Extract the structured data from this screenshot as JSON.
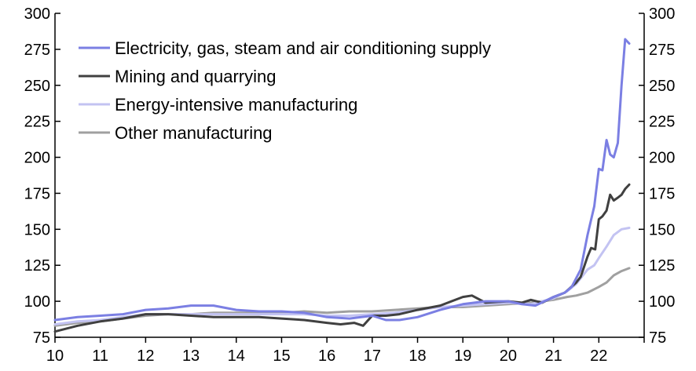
{
  "chart_data": {
    "type": "line",
    "title": "",
    "xlabel": "",
    "ylabel": "",
    "xlim": [
      2010,
      2023
    ],
    "ylim": [
      75,
      300
    ],
    "y_ticks": [
      75,
      100,
      125,
      150,
      175,
      200,
      225,
      250,
      275,
      300
    ],
    "y_tick_labels": [
      "75",
      "100",
      "125",
      "150",
      "175",
      "200",
      "225",
      "250",
      "275",
      "300"
    ],
    "x_ticks": [
      2010,
      2011,
      2012,
      2013,
      2014,
      2015,
      2016,
      2017,
      2018,
      2019,
      2020,
      2021,
      2022
    ],
    "x_tick_labels": [
      "10",
      "11",
      "12",
      "13",
      "14",
      "15",
      "16",
      "17",
      "18",
      "19",
      "20",
      "21",
      "22"
    ],
    "grid": false,
    "legend_position": "top-left",
    "series": [
      {
        "name": "Electricity, gas, steam and air conditioning supply",
        "color": "#7b7fe3",
        "x": [
          2010.0,
          2010.5,
          2011.0,
          2011.5,
          2012.0,
          2012.5,
          2013.0,
          2013.5,
          2014.0,
          2014.5,
          2015.0,
          2015.5,
          2016.0,
          2016.5,
          2017.0,
          2017.3,
          2017.6,
          2018.0,
          2018.5,
          2019.0,
          2019.5,
          2020.0,
          2020.3,
          2020.6,
          2021.0,
          2021.25,
          2021.4,
          2021.5,
          2021.6,
          2021.75,
          2021.9,
          2022.0,
          2022.08,
          2022.17,
          2022.25,
          2022.33,
          2022.42,
          2022.5,
          2022.58,
          2022.67
        ],
        "values": [
          87,
          89,
          90,
          91,
          94,
          95,
          97,
          97,
          94,
          93,
          93,
          92,
          89,
          88,
          90,
          87,
          87,
          89,
          94,
          98,
          100,
          100,
          98,
          97,
          103,
          106,
          110,
          116,
          122,
          146,
          166,
          192,
          191,
          212,
          202,
          200,
          210,
          250,
          282,
          279
        ]
      },
      {
        "name": "Mining and quarrying",
        "color": "#404040",
        "x": [
          2010.0,
          2010.5,
          2011.0,
          2011.5,
          2012.0,
          2012.5,
          2013.0,
          2013.5,
          2014.0,
          2014.5,
          2015.0,
          2015.5,
          2016.0,
          2016.3,
          2016.6,
          2016.8,
          2017.0,
          2017.3,
          2017.6,
          2018.0,
          2018.5,
          2019.0,
          2019.2,
          2019.5,
          2020.0,
          2020.3,
          2020.5,
          2020.75,
          2021.0,
          2021.25,
          2021.5,
          2021.6,
          2021.75,
          2021.83,
          2021.92,
          2022.0,
          2022.08,
          2022.17,
          2022.25,
          2022.33,
          2022.42,
          2022.5,
          2022.58,
          2022.67
        ],
        "values": [
          79,
          83,
          86,
          88,
          91,
          91,
          90,
          89,
          89,
          89,
          88,
          87,
          85,
          84,
          85,
          83,
          90,
          90,
          91,
          94,
          97,
          103,
          104,
          99,
          100,
          99,
          101,
          99,
          103,
          106,
          113,
          117,
          131,
          137,
          136,
          157,
          159,
          163,
          174,
          170,
          172,
          174,
          178,
          181
        ]
      },
      {
        "name": "Energy-intensive manufacturing",
        "color": "#c3c3f2",
        "x": [
          2010.0,
          2010.5,
          2011.0,
          2011.5,
          2012.0,
          2012.5,
          2013.0,
          2013.5,
          2014.0,
          2014.5,
          2015.0,
          2015.5,
          2016.0,
          2016.5,
          2017.0,
          2017.5,
          2018.0,
          2018.5,
          2019.0,
          2019.5,
          2020.0,
          2020.5,
          2021.0,
          2021.3,
          2021.5,
          2021.75,
          2021.9,
          2022.0,
          2022.17,
          2022.33,
          2022.5,
          2022.67
        ],
        "values": [
          84,
          86,
          87,
          89,
          91,
          91,
          91,
          91,
          91,
          91,
          91,
          91,
          90,
          90,
          91,
          92,
          94,
          96,
          97,
          98,
          99,
          98,
          102,
          107,
          112,
          122,
          125,
          130,
          138,
          146,
          150,
          151
        ]
      },
      {
        "name": "Other manufacturing",
        "color": "#a0a0a0",
        "x": [
          2010.0,
          2010.5,
          2011.0,
          2011.5,
          2012.0,
          2012.5,
          2013.0,
          2013.5,
          2014.0,
          2014.5,
          2015.0,
          2015.5,
          2016.0,
          2016.5,
          2017.0,
          2017.5,
          2018.0,
          2018.5,
          2019.0,
          2019.5,
          2020.0,
          2020.5,
          2021.0,
          2021.3,
          2021.5,
          2021.75,
          2022.0,
          2022.17,
          2022.33,
          2022.5,
          2022.67
        ],
        "values": [
          83,
          85,
          86,
          88,
          90,
          91,
          91,
          92,
          92,
          92,
          92,
          93,
          92,
          93,
          93,
          94,
          95,
          96,
          96,
          97,
          98,
          99,
          101,
          103,
          104,
          106,
          110,
          113,
          118,
          121,
          123
        ]
      }
    ]
  }
}
